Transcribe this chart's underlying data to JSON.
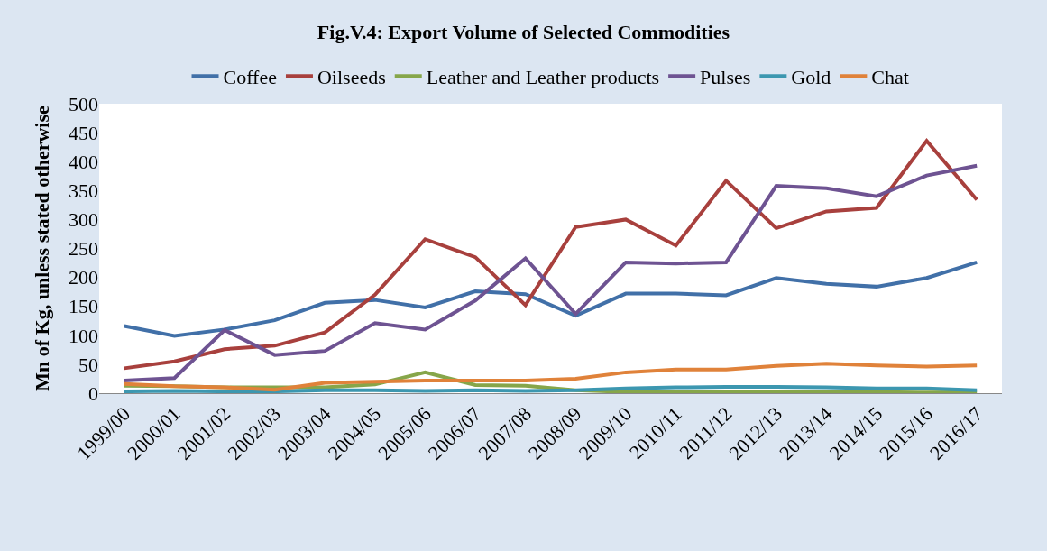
{
  "chart_data": {
    "type": "line",
    "title": "Fig.V.4: Export Volume of Selected Commodities",
    "ylabel": "Mn of Kg, unless stated otherwise",
    "categories": [
      "1999/00",
      "2000/01",
      "2001/02",
      "2002/03",
      "2003/04",
      "2004/05",
      "2005/06",
      "2006/07",
      "2007/08",
      "2008/09",
      "2009/10",
      "2010/11",
      "2011/12",
      "2012/13",
      "2013/14",
      "2014/15",
      "2015/16",
      "2016/17"
    ],
    "series": [
      {
        "name": "Coffee",
        "color": "#4170a8",
        "values": [
          116,
          99,
          110,
          126,
          156,
          161,
          148,
          176,
          171,
          134,
          172,
          172,
          169,
          199,
          189,
          184,
          199,
          226
        ]
      },
      {
        "name": "Oilseeds",
        "color": "#a8403d",
        "values": [
          43,
          55,
          76,
          82,
          105,
          170,
          266,
          235,
          152,
          287,
          300,
          255,
          367,
          285,
          314,
          320,
          436,
          334
        ]
      },
      {
        "name": "Leather and Leather products",
        "color": "#86a64a",
        "values": [
          13,
          12,
          10,
          10,
          10,
          15,
          36,
          14,
          13,
          5,
          2,
          2,
          3,
          3,
          3,
          2,
          1,
          2
        ]
      },
      {
        "name": "Pulses",
        "color": "#6e5392",
        "values": [
          22,
          26,
          109,
          66,
          73,
          121,
          110,
          160,
          233,
          137,
          226,
          224,
          226,
          358,
          354,
          340,
          376,
          393
        ]
      },
      {
        "name": "Gold",
        "color": "#3c97b0",
        "values": [
          3,
          4,
          3,
          3,
          5,
          5,
          4,
          5,
          4,
          5,
          8,
          10,
          11,
          11,
          10,
          8,
          8,
          5
        ]
      },
      {
        "name": "Chat",
        "color": "#e0823a",
        "values": [
          16,
          12,
          10,
          6,
          18,
          20,
          22,
          22,
          22,
          25,
          36,
          41,
          41,
          47,
          51,
          48,
          46,
          48
        ]
      }
    ],
    "ylim": [
      0,
      500
    ],
    "yticks": [
      0,
      50,
      100,
      150,
      200,
      250,
      300,
      350,
      400,
      450,
      500
    ],
    "legend": "top",
    "marker": "none",
    "line_style": "solid"
  }
}
